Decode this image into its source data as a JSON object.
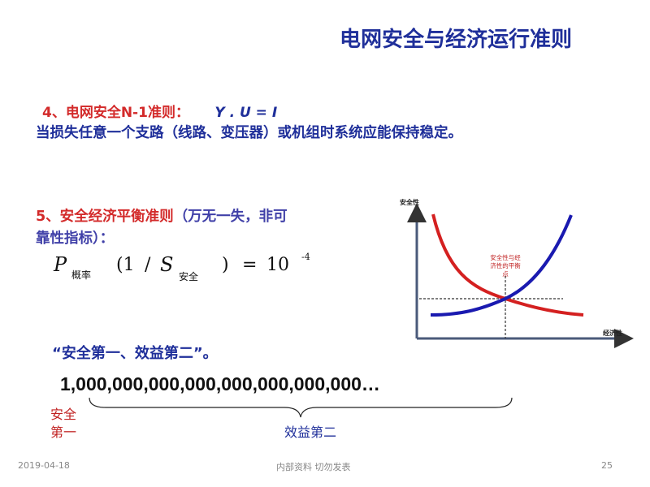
{
  "title": "电网安全与经济运行准则",
  "rule4": {
    "heading": "4、电网安全N-1准则：",
    "formula": "Y . U = I",
    "text": "当损失任意一个支路（线路、变压器）或机组时系统应能保持稳定。"
  },
  "rule5": {
    "heading": "5、安全经济平衡准则",
    "note_line1": "（万无一失，非可",
    "note_line2": "靠性指标）："
  },
  "formula5": {
    "p": "P",
    "p_sub": "概率",
    "open": "(1",
    "slash": "/",
    "s": "S",
    "s_sub": "安全",
    "close": ")",
    "eq": "=",
    "base": "10",
    "exp": "-4"
  },
  "diagram": {
    "y_label": "安全性",
    "x_label": "经济性",
    "balance_label_1": "安全性与经",
    "balance_label_2": "济性的平衡",
    "balance_label_3": "点",
    "colors": {
      "safety_curve": "#d42020",
      "economy_curve": "#1a1ab0"
    }
  },
  "motto": "“安全第一、效益第二”。",
  "big_number": "1,000,000,000,000,000,000,000,000…",
  "brace_left_1": "安全",
  "brace_left_2": "第一",
  "brace_right": "效益第二",
  "footer": {
    "date": "2019-04-18",
    "center": "内部资料 切勿发表",
    "page": "25"
  }
}
